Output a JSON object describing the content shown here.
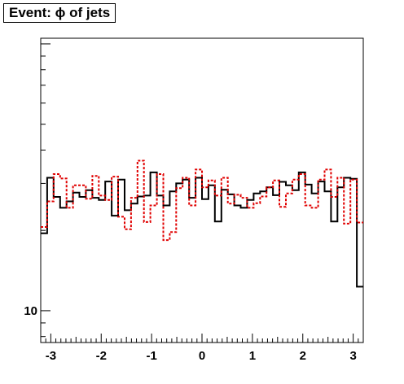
{
  "chart_data": {
    "type": "histogram",
    "title": "Event: ϕ of jets",
    "xlabel": "",
    "ylabel": "",
    "xlim": [
      -3.2,
      3.2
    ],
    "y_scale": "log",
    "ylim": [
      7.6,
      105
    ],
    "x_ticks": [
      -3,
      -2,
      -1,
      0,
      1,
      2,
      3
    ],
    "x_tick_labels": [
      "-3",
      "-2",
      "-1",
      "0",
      "1",
      "2",
      "3"
    ],
    "y_ticks": [
      10
    ],
    "y_tick_labels": [
      "10"
    ],
    "bin_edges": [
      -3.2,
      -3.072,
      -2.944,
      -2.816,
      -2.688,
      -2.56,
      -2.432,
      -2.304,
      -2.176,
      -2.048,
      -1.92,
      -1.792,
      -1.664,
      -1.536,
      -1.408,
      -1.28,
      -1.152,
      -1.024,
      -0.896,
      -0.768,
      -0.64,
      -0.512,
      -0.384,
      -0.256,
      -0.128,
      0.0,
      0.128,
      0.256,
      0.384,
      0.512,
      0.64,
      0.768,
      0.896,
      1.024,
      1.152,
      1.28,
      1.408,
      1.536,
      1.664,
      1.792,
      1.92,
      2.048,
      2.176,
      2.304,
      2.432,
      2.56,
      2.688,
      2.816,
      2.944,
      3.072,
      3.2
    ],
    "series": [
      {
        "color": "#000000",
        "dash": "solid",
        "values": [
          19.5,
          31.5,
          26.7,
          24.3,
          25.7,
          27.7,
          26.7,
          28.3,
          26.5,
          26.0,
          30.5,
          22.7,
          31.0,
          23.8,
          25.2,
          26.8,
          27.0,
          33.0,
          27.0,
          24.8,
          28.0,
          30.0,
          31.0,
          26.5,
          31.5,
          26.2,
          29.5,
          21.6,
          28.4,
          27.3,
          24.8,
          24.3,
          26.0,
          27.5,
          28.0,
          29.0,
          27.1,
          30.4,
          29.5,
          28.3,
          33.0,
          29.7,
          27.5,
          30.5,
          28.0,
          21.6,
          29.0,
          31.5,
          31.2,
          12.3
        ]
      },
      {
        "color": "#e00000",
        "dash": "dashed",
        "values": [
          20.6,
          25.7,
          32.5,
          31.3,
          24.3,
          29.5,
          29.5,
          26.3,
          32.0,
          27.0,
          26.0,
          31.8,
          22.5,
          20.2,
          26.5,
          36.5,
          21.5,
          24.8,
          32.5,
          18.4,
          19.7,
          28.8,
          31.5,
          24.8,
          33.8,
          29.0,
          30.8,
          27.0,
          31.5,
          25.2,
          27.2,
          26.5,
          24.3,
          25.3,
          26.8,
          29.0,
          30.8,
          24.5,
          27.5,
          31.0,
          32.5,
          24.8,
          24.3,
          31.0,
          33.8,
          26.7,
          31.5,
          21.2,
          31.0,
          21.4
        ]
      }
    ]
  }
}
